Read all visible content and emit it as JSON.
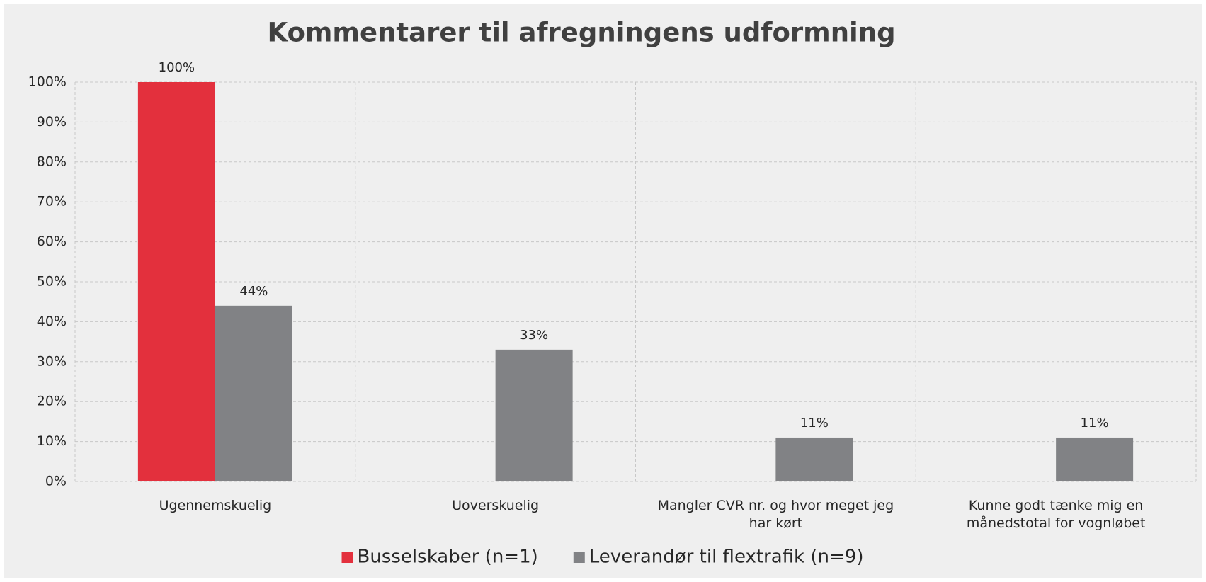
{
  "chart_data": {
    "type": "bar",
    "title": "Kommentarer til afregningens udformning",
    "categories": [
      "Ugennemskuelig",
      "Uoverskuelig",
      "Mangler CVR nr. og hvor meget jeg har kørt",
      "Kunne godt tænke mig en månedstotal for vognløbet"
    ],
    "series": [
      {
        "name": "Busselskaber (n=1)",
        "color": "#e3303d",
        "values": [
          100,
          null,
          null,
          null
        ],
        "value_labels": [
          "100%",
          null,
          null,
          null
        ]
      },
      {
        "name": "Leverandør til flextrafik (n=9)",
        "color": "#818285",
        "values": [
          44,
          33,
          11,
          11
        ],
        "value_labels": [
          "44%",
          "33%",
          "11%",
          "11%"
        ]
      }
    ],
    "ylim": [
      0,
      100
    ],
    "yticks": [
      {
        "value": 0,
        "label": "0%"
      },
      {
        "value": 10,
        "label": "10%"
      },
      {
        "value": 20,
        "label": "20%"
      },
      {
        "value": 30,
        "label": "30%"
      },
      {
        "value": 40,
        "label": "40%"
      },
      {
        "value": 50,
        "label": "50%"
      },
      {
        "value": 60,
        "label": "60%"
      },
      {
        "value": 70,
        "label": "70%"
      },
      {
        "value": 80,
        "label": "80%"
      },
      {
        "value": 90,
        "label": "90%"
      },
      {
        "value": 100,
        "label": "100%"
      }
    ],
    "grid": true,
    "legend": "bottom"
  }
}
